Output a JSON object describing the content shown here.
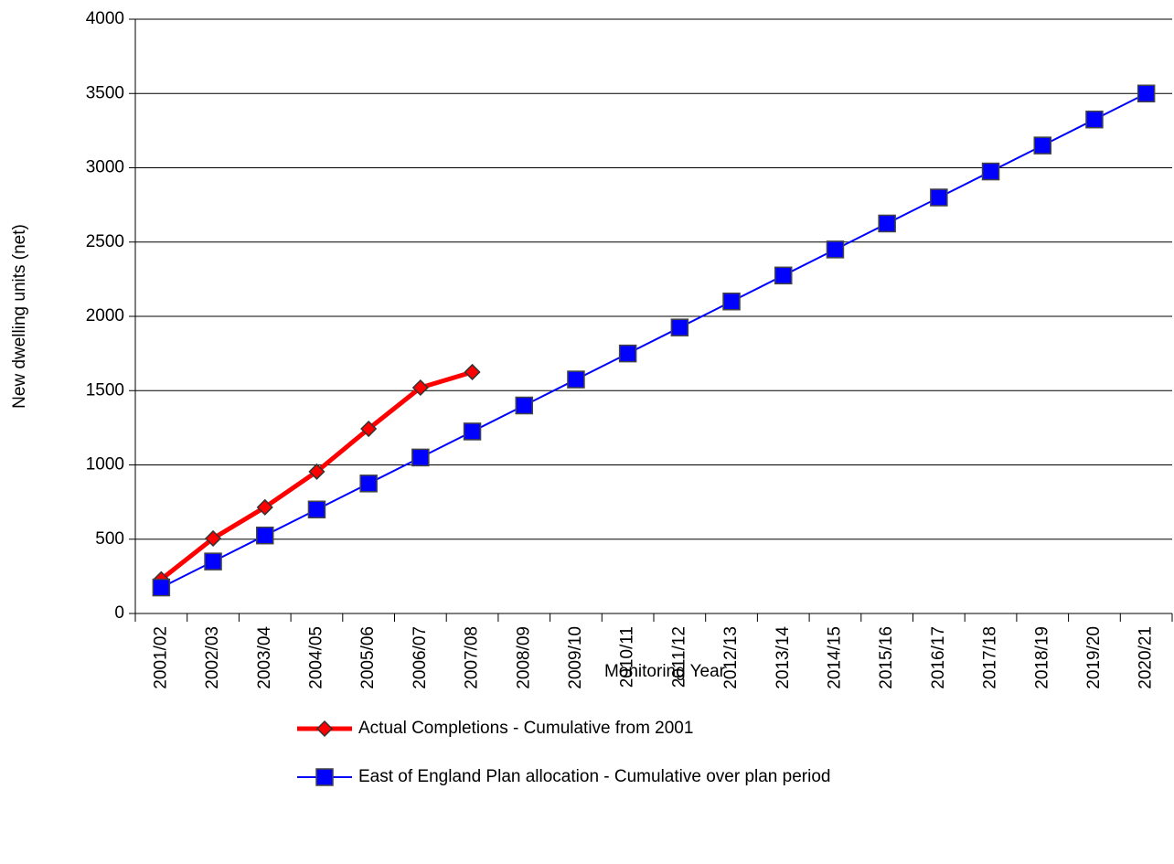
{
  "chart_data": {
    "type": "line",
    "y_label": "New dwelling units (net)",
    "x_label": "Monitoring Year",
    "categories": [
      "2001/02",
      "2002/03",
      "2003/04",
      "2004/05",
      "2005/06",
      "2006/07",
      "2007/08",
      "2008/09",
      "2009/10",
      "2010/11",
      "2011/12",
      "2012/13",
      "2013/14",
      "2014/15",
      "2015/16",
      "2016/17",
      "2017/18",
      "2018/19",
      "2019/20",
      "2020/21"
    ],
    "series": [
      {
        "name": "Actual Completions - Cumulative from 2001",
        "color": "#ff0000",
        "marker": "diamond",
        "values": [
          230,
          505,
          715,
          955,
          1243,
          1520,
          1625,
          null,
          null,
          null,
          null,
          null,
          null,
          null,
          null,
          null,
          null,
          null,
          null,
          null
        ]
      },
      {
        "name": "East of England Plan allocation -  Cumulative over plan period",
        "color": "#0000ff",
        "marker": "square",
        "values": [
          175,
          350,
          525,
          700,
          875,
          1050,
          1225,
          1400,
          1575,
          1750,
          1925,
          2100,
          2275,
          2450,
          2625,
          2800,
          2975,
          3150,
          3325,
          3500
        ]
      }
    ],
    "ylim": [
      0,
      4000
    ],
    "yticks": [
      0,
      500,
      1000,
      1500,
      2000,
      2500,
      3000,
      3500,
      4000
    ],
    "grid": true
  }
}
